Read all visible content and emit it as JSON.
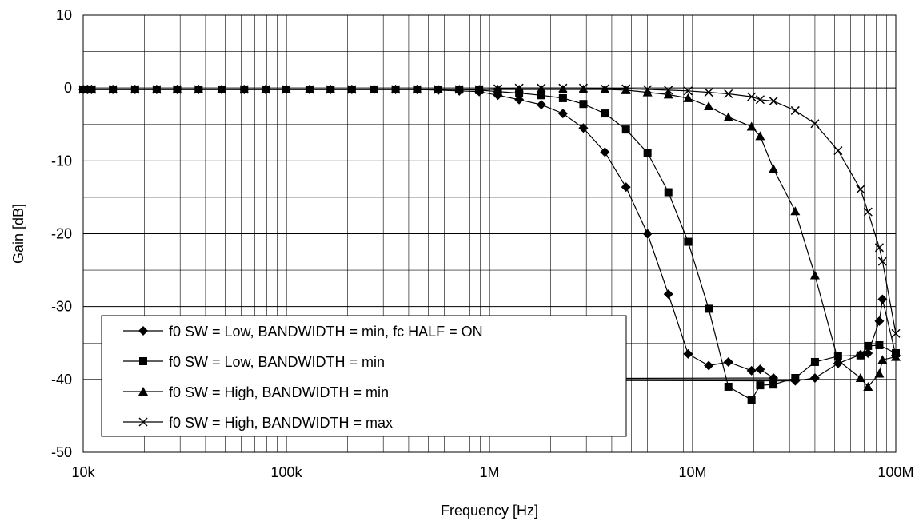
{
  "chart_data": {
    "type": "line",
    "title": "",
    "xlabel": "Frequency [Hz]",
    "ylabel": "Gain [dB]",
    "xscale": "log",
    "xlim": [
      10000,
      100000000
    ],
    "ylim": [
      -50,
      10
    ],
    "xticks": [
      {
        "value": 10000,
        "label": "10k"
      },
      {
        "value": 100000,
        "label": "100k"
      },
      {
        "value": 1000000,
        "label": "1M"
      },
      {
        "value": 10000000,
        "label": "10M"
      },
      {
        "value": 100000000,
        "label": "100M"
      }
    ],
    "yticks": [
      {
        "value": 10,
        "label": "10"
      },
      {
        "value": 0,
        "label": "0"
      },
      {
        "value": -10,
        "label": "-10"
      },
      {
        "value": -20,
        "label": "-20"
      },
      {
        "value": -30,
        "label": "-30"
      },
      {
        "value": -40,
        "label": "-40"
      },
      {
        "value": -50,
        "label": "-50"
      }
    ],
    "grid": true,
    "legend_position": "bottom-left",
    "series": [
      {
        "name": "f0 SW = Low, BANDWIDTH = min, fc HALF = ON",
        "marker": "diamond",
        "points": [
          [
            10000,
            -0.2
          ],
          [
            10500,
            -0.2
          ],
          [
            11000,
            -0.2
          ],
          [
            14000,
            -0.2
          ],
          [
            18000,
            -0.2
          ],
          [
            23000,
            -0.2
          ],
          [
            29000,
            -0.2
          ],
          [
            37000,
            -0.2
          ],
          [
            48000,
            -0.2
          ],
          [
            62000,
            -0.2
          ],
          [
            79000,
            -0.2
          ],
          [
            100000,
            -0.2
          ],
          [
            130000,
            -0.2
          ],
          [
            165000,
            -0.2
          ],
          [
            210000,
            -0.2
          ],
          [
            270000,
            -0.2
          ],
          [
            345000,
            -0.2
          ],
          [
            440000,
            -0.2
          ],
          [
            560000,
            -0.3
          ],
          [
            710000,
            -0.4
          ],
          [
            890000,
            -0.5
          ],
          [
            1100000,
            -1.0
          ],
          [
            1400000,
            -1.6
          ],
          [
            1800000,
            -2.3
          ],
          [
            2300000,
            -3.5
          ],
          [
            2900000,
            -5.5
          ],
          [
            3700000,
            -8.8
          ],
          [
            4700000,
            -13.6
          ],
          [
            6000000,
            -20.0
          ],
          [
            7600000,
            -28.3
          ],
          [
            9500000,
            -36.5
          ],
          [
            12000000,
            -38.1
          ],
          [
            15000000,
            -37.6
          ],
          [
            19500000,
            -38.8
          ],
          [
            21500000,
            -38.6
          ],
          [
            25000000,
            -39.8
          ],
          [
            32000,
            -40.0
          ],
          [
            32000000,
            -40.2
          ],
          [
            40000000,
            -39.8
          ],
          [
            52000000,
            -37.8
          ],
          [
            67000000,
            -36.6
          ],
          [
            73000000,
            -36.4
          ],
          [
            83000000,
            -32.0
          ],
          [
            86000000,
            -29.0
          ],
          [
            100000000,
            -36.7
          ]
        ]
      },
      {
        "name": "f0 SW = Low, BANDWIDTH = min",
        "marker": "square",
        "points": [
          [
            10000,
            -0.2
          ],
          [
            10500,
            -0.2
          ],
          [
            11000,
            -0.2
          ],
          [
            14000,
            -0.2
          ],
          [
            18000,
            -0.2
          ],
          [
            23000,
            -0.2
          ],
          [
            29000,
            -0.2
          ],
          [
            37000,
            -0.2
          ],
          [
            48000,
            -0.2
          ],
          [
            62000,
            -0.2
          ],
          [
            79000,
            -0.2
          ],
          [
            100000,
            -0.2
          ],
          [
            130000,
            -0.2
          ],
          [
            165000,
            -0.2
          ],
          [
            210000,
            -0.2
          ],
          [
            270000,
            -0.2
          ],
          [
            345000,
            -0.2
          ],
          [
            440000,
            -0.2
          ],
          [
            560000,
            -0.2
          ],
          [
            710000,
            -0.2
          ],
          [
            890000,
            -0.3
          ],
          [
            1100000,
            -0.5
          ],
          [
            1400000,
            -0.7
          ],
          [
            1800000,
            -1.0
          ],
          [
            2300000,
            -1.4
          ],
          [
            2900000,
            -2.2
          ],
          [
            3700000,
            -3.5
          ],
          [
            4700000,
            -5.7
          ],
          [
            6000000,
            -8.9
          ],
          [
            7600000,
            -14.3
          ],
          [
            9500000,
            -21.1
          ],
          [
            12000000,
            -30.3
          ],
          [
            15000000,
            -41.0
          ],
          [
            19500000,
            -42.8
          ],
          [
            21500000,
            -40.8
          ],
          [
            25000000,
            -40.7
          ],
          [
            32000000,
            -39.8
          ],
          [
            40000000,
            -37.6
          ],
          [
            52000000,
            -36.8
          ],
          [
            67000000,
            -36.7
          ],
          [
            73000000,
            -35.4
          ],
          [
            83000000,
            -35.3
          ],
          [
            100000000,
            -36.4
          ]
        ]
      },
      {
        "name": "f0 SW = High, BANDWIDTH = min",
        "marker": "triangle",
        "points": [
          [
            10000,
            -0.2
          ],
          [
            10500,
            -0.2
          ],
          [
            11000,
            -0.2
          ],
          [
            14000,
            -0.2
          ],
          [
            18000,
            -0.2
          ],
          [
            23000,
            -0.2
          ],
          [
            29000,
            -0.2
          ],
          [
            37000,
            -0.2
          ],
          [
            48000,
            -0.2
          ],
          [
            62000,
            -0.2
          ],
          [
            79000,
            -0.2
          ],
          [
            100000,
            -0.2
          ],
          [
            130000,
            -0.2
          ],
          [
            165000,
            -0.2
          ],
          [
            210000,
            -0.2
          ],
          [
            270000,
            -0.2
          ],
          [
            345000,
            -0.2
          ],
          [
            440000,
            -0.2
          ],
          [
            560000,
            -0.2
          ],
          [
            710000,
            -0.2
          ],
          [
            890000,
            -0.2
          ],
          [
            1100000,
            -0.2
          ],
          [
            1400000,
            -0.2
          ],
          [
            1800000,
            -0.2
          ],
          [
            2300000,
            -0.2
          ],
          [
            2900000,
            -0.2
          ],
          [
            3700000,
            -0.2
          ],
          [
            4700000,
            -0.3
          ],
          [
            6000000,
            -0.6
          ],
          [
            7600000,
            -0.9
          ],
          [
            9500000,
            -1.4
          ],
          [
            12000000,
            -2.5
          ],
          [
            15000000,
            -4.0
          ],
          [
            19500000,
            -5.3
          ],
          [
            21500000,
            -6.6
          ],
          [
            25000000,
            -11.1
          ],
          [
            32000000,
            -16.9
          ],
          [
            40000000,
            -25.7
          ],
          [
            52000000,
            -37.4
          ],
          [
            67000000,
            -39.8
          ],
          [
            73000000,
            -41.0
          ],
          [
            83000000,
            -39.2
          ],
          [
            86000000,
            -37.3
          ],
          [
            100000000,
            -36.9
          ]
        ]
      },
      {
        "name": "f0 SW = High, BANDWIDTH = max",
        "marker": "x",
        "points": [
          [
            10000,
            -0.2
          ],
          [
            10500,
            -0.2
          ],
          [
            11000,
            -0.2
          ],
          [
            14000,
            -0.2
          ],
          [
            18000,
            -0.2
          ],
          [
            23000,
            -0.2
          ],
          [
            29000,
            -0.2
          ],
          [
            37000,
            -0.2
          ],
          [
            48000,
            -0.2
          ],
          [
            62000,
            -0.2
          ],
          [
            79000,
            -0.2
          ],
          [
            100000,
            -0.2
          ],
          [
            130000,
            -0.2
          ],
          [
            165000,
            -0.2
          ],
          [
            210000,
            -0.2
          ],
          [
            270000,
            -0.2
          ],
          [
            345000,
            -0.2
          ],
          [
            440000,
            -0.2
          ],
          [
            560000,
            -0.2
          ],
          [
            710000,
            -0.2
          ],
          [
            890000,
            -0.2
          ],
          [
            1100000,
            -0.1
          ],
          [
            1400000,
            0.0
          ],
          [
            1800000,
            0.0
          ],
          [
            2300000,
            0.0
          ],
          [
            2900000,
            0.0
          ],
          [
            3700000,
            -0.1
          ],
          [
            4700000,
            -0.1
          ],
          [
            6000000,
            -0.2
          ],
          [
            7600000,
            -0.3
          ],
          [
            9500000,
            -0.4
          ],
          [
            12000000,
            -0.6
          ],
          [
            15000000,
            -0.8
          ],
          [
            19500000,
            -1.2
          ],
          [
            21500000,
            -1.6
          ],
          [
            25000000,
            -1.8
          ],
          [
            32000000,
            -3.1
          ],
          [
            40000000,
            -4.9
          ],
          [
            52000000,
            -8.6
          ],
          [
            67000000,
            -13.9
          ],
          [
            73000000,
            -17.0
          ],
          [
            83000000,
            -21.9
          ],
          [
            86000000,
            -23.8
          ],
          [
            100000000,
            -33.7
          ]
        ]
      }
    ]
  }
}
